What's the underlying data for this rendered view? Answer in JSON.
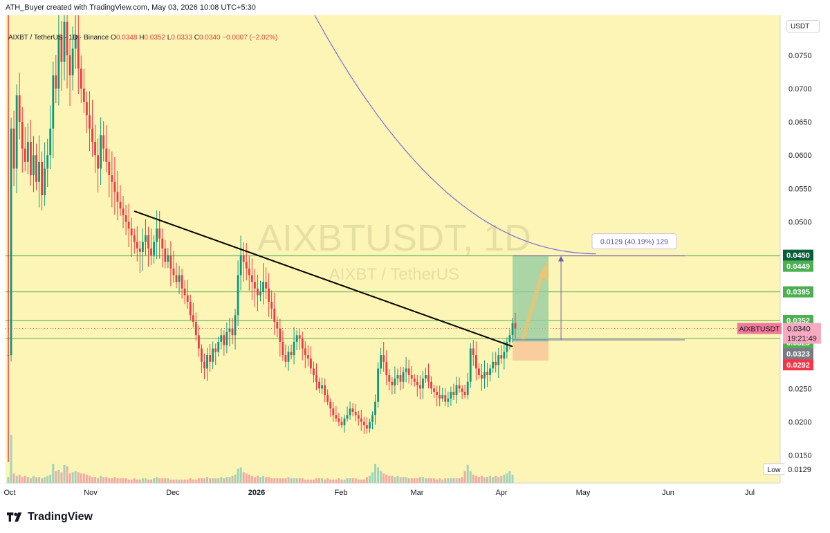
{
  "header": {
    "created_by": "ATH_Buyer created with TradingView.com, May 03, 2026 10:08 UTC+5:30"
  },
  "legend": {
    "symbol": "AIXBT / TetherUS · 1D · Binance",
    "o_label": "O",
    "o": "0.0348",
    "h_label": "H",
    "h": "0.0352",
    "l_label": "L",
    "l": "0.0333",
    "c_label": "C",
    "c": "0.0340",
    "change": "−0.0007 (−2.02%)"
  },
  "unit_button": "USDT",
  "brand": "TradingView",
  "colors": {
    "background": "#fdf5b5",
    "up": "#089981",
    "down": "#f23645",
    "trendline": "#000000",
    "ma": "#7e6bd6",
    "levels": "#4caf50",
    "target_zone": "#8fc9a0",
    "stop_zone": "#f8c59a"
  },
  "chart_data": {
    "type": "candlestick",
    "watermark_title": "AIXBTUSDT, 1D",
    "watermark_subtitle": "AIXBT / TetherUS",
    "y_ticks": [
      "0.0750",
      "0.0700",
      "0.0650",
      "0.0600",
      "0.0550",
      "0.0500",
      "0.0450",
      "0.0400",
      "0.0350",
      "0.0300",
      "0.0250",
      "0.0200",
      "0.0150"
    ],
    "x_ticks": [
      "Oct",
      "Nov",
      "Dec",
      "2026",
      "Feb",
      "Mar",
      "Apr",
      "May",
      "Jun",
      "Jul"
    ],
    "ylim": [
      0.0108,
      0.081
    ],
    "price_labels": [
      {
        "value": 0.045,
        "text": "0.0450",
        "color": "#0b5e3a"
      },
      {
        "value": 0.0449,
        "text": "0.0449",
        "color": "#4caf50"
      },
      {
        "value": 0.0395,
        "text": "0.0395",
        "color": "#4caf50"
      },
      {
        "value": 0.0352,
        "text": "0.0352",
        "color": "#4caf50"
      },
      {
        "value": 0.034,
        "text": "0.0340",
        "color": "#f07a9a"
      },
      {
        "value": 0.0325,
        "text": "0.0325",
        "color": "#4caf50"
      },
      {
        "value": 0.0323,
        "text": "0.0323",
        "color": "#787b86"
      },
      {
        "value": 0.0292,
        "text": "0.0292",
        "color": "#f23645"
      }
    ],
    "current_symbol": "AIXBTUSDT",
    "current_price": "0.0340",
    "countdown": "19:21:49",
    "horizontal_levels": [
      0.0449,
      0.0395,
      0.0352,
      0.0325
    ],
    "trendline": {
      "from": [
        "Nov 21",
        0.0516
      ],
      "to": [
        "May 01",
        0.0313
      ]
    },
    "position": {
      "entry": 0.032,
      "target": 0.0449,
      "stop": 0.0292,
      "label": "0.0129 (40.19%) 129"
    },
    "low_label": "Low",
    "low_value": "0.0129",
    "closes": [
      0.03,
      0.064,
      0.058,
      0.069,
      0.065,
      0.061,
      0.059,
      0.062,
      0.057,
      0.06,
      0.056,
      0.059,
      0.054,
      0.058,
      0.06,
      0.064,
      0.072,
      0.07,
      0.078,
      0.074,
      0.08,
      0.075,
      0.072,
      0.076,
      0.078,
      0.073,
      0.07,
      0.068,
      0.066,
      0.064,
      0.062,
      0.06,
      0.058,
      0.063,
      0.061,
      0.059,
      0.057,
      0.056,
      0.0545,
      0.053,
      0.052,
      0.051,
      0.05,
      0.049,
      0.048,
      0.047,
      0.046,
      0.0455,
      0.047,
      0.048,
      0.046,
      0.045,
      0.047,
      0.049,
      0.0475,
      0.046,
      0.044,
      0.045,
      0.043,
      0.042,
      0.041,
      0.042,
      0.04,
      0.039,
      0.038,
      0.036,
      0.035,
      0.033,
      0.031,
      0.029,
      0.028,
      0.03,
      0.029,
      0.031,
      0.0305,
      0.032,
      0.033,
      0.0315,
      0.0335,
      0.034,
      0.033,
      0.036,
      0.042,
      0.045,
      0.044,
      0.043,
      0.042,
      0.041,
      0.04,
      0.039,
      0.0395,
      0.041,
      0.04,
      0.038,
      0.037,
      0.035,
      0.034,
      0.032,
      0.03,
      0.029,
      0.0305,
      0.03,
      0.032,
      0.033,
      0.0325,
      0.031,
      0.03,
      0.0295,
      0.028,
      0.027,
      0.026,
      0.025,
      0.0255,
      0.024,
      0.023,
      0.022,
      0.021,
      0.0205,
      0.02,
      0.0195,
      0.0205,
      0.021,
      0.022,
      0.0215,
      0.021,
      0.0205,
      0.02,
      0.0195,
      0.019,
      0.02,
      0.021,
      0.023,
      0.028,
      0.03,
      0.029,
      0.027,
      0.026,
      0.0255,
      0.0265,
      0.027,
      0.026,
      0.0275,
      0.028,
      0.027,
      0.0265,
      0.026,
      0.0255,
      0.025,
      0.0265,
      0.027,
      0.026,
      0.025,
      0.0245,
      0.024,
      0.0235,
      0.024,
      0.023,
      0.0235,
      0.0245,
      0.024,
      0.0255,
      0.025,
      0.0245,
      0.024,
      0.026,
      0.031,
      0.03,
      0.028,
      0.027,
      0.0265,
      0.0275,
      0.027,
      0.028,
      0.029,
      0.0285,
      0.03,
      0.0295,
      0.0305,
      0.032,
      0.033,
      0.0348,
      0.034
    ],
    "volumes": [
      0.5,
      4.0,
      0.8,
      0.6,
      0.7,
      0.5,
      0.6,
      0.5,
      0.4,
      0.6,
      0.5,
      0.5,
      0.4,
      0.5,
      0.6,
      0.7,
      1.6,
      1.0,
      1.1,
      0.9,
      1.5,
      1.4,
      0.8,
      0.9,
      1.0,
      0.9,
      0.8,
      0.8,
      0.7,
      0.6,
      0.5,
      0.5,
      0.4,
      0.6,
      0.5,
      0.5,
      0.4,
      0.4,
      0.5,
      0.4,
      0.4,
      0.4,
      0.4,
      0.3,
      0.3,
      0.4,
      0.3,
      0.3,
      0.4,
      0.4,
      0.3,
      0.3,
      0.4,
      0.5,
      0.4,
      0.4,
      0.4,
      0.4,
      0.3,
      0.3,
      0.3,
      0.3,
      0.3,
      0.3,
      0.3,
      0.4,
      0.3,
      0.3,
      0.4,
      0.4,
      0.4,
      0.5,
      0.4,
      0.4,
      0.4,
      0.4,
      0.5,
      0.4,
      0.5,
      0.5,
      0.6,
      0.7,
      1.2,
      1.3,
      0.9,
      0.8,
      0.7,
      0.6,
      0.5,
      0.6,
      0.5,
      0.6,
      0.5,
      0.5,
      0.4,
      0.4,
      0.4,
      0.4,
      0.4,
      0.4,
      0.5,
      0.4,
      0.4,
      0.4,
      0.4,
      0.4,
      0.3,
      0.3,
      0.3,
      0.3,
      0.4,
      0.4,
      0.4,
      0.3,
      0.4,
      0.3,
      0.3,
      0.3,
      0.4,
      0.3,
      0.3,
      0.4,
      0.4,
      0.4,
      0.4,
      0.3,
      0.3,
      0.3,
      0.5,
      0.6,
      0.9,
      1.6,
      1.3,
      1.0,
      0.8,
      0.7,
      0.6,
      0.6,
      0.5,
      0.6,
      0.5,
      0.5,
      0.5,
      0.4,
      0.4,
      0.4,
      0.4,
      0.5,
      0.5,
      0.4,
      0.4,
      0.4,
      0.4,
      0.3,
      0.4,
      0.3,
      0.4,
      0.4,
      0.4,
      0.4,
      0.4,
      0.4,
      0.5,
      1.0,
      1.5,
      1.0,
      0.7,
      0.6,
      0.5,
      0.6,
      0.5,
      0.5,
      0.6,
      0.5,
      0.6,
      0.5,
      0.6,
      0.7,
      0.8,
      1.0,
      0.7
    ]
  }
}
